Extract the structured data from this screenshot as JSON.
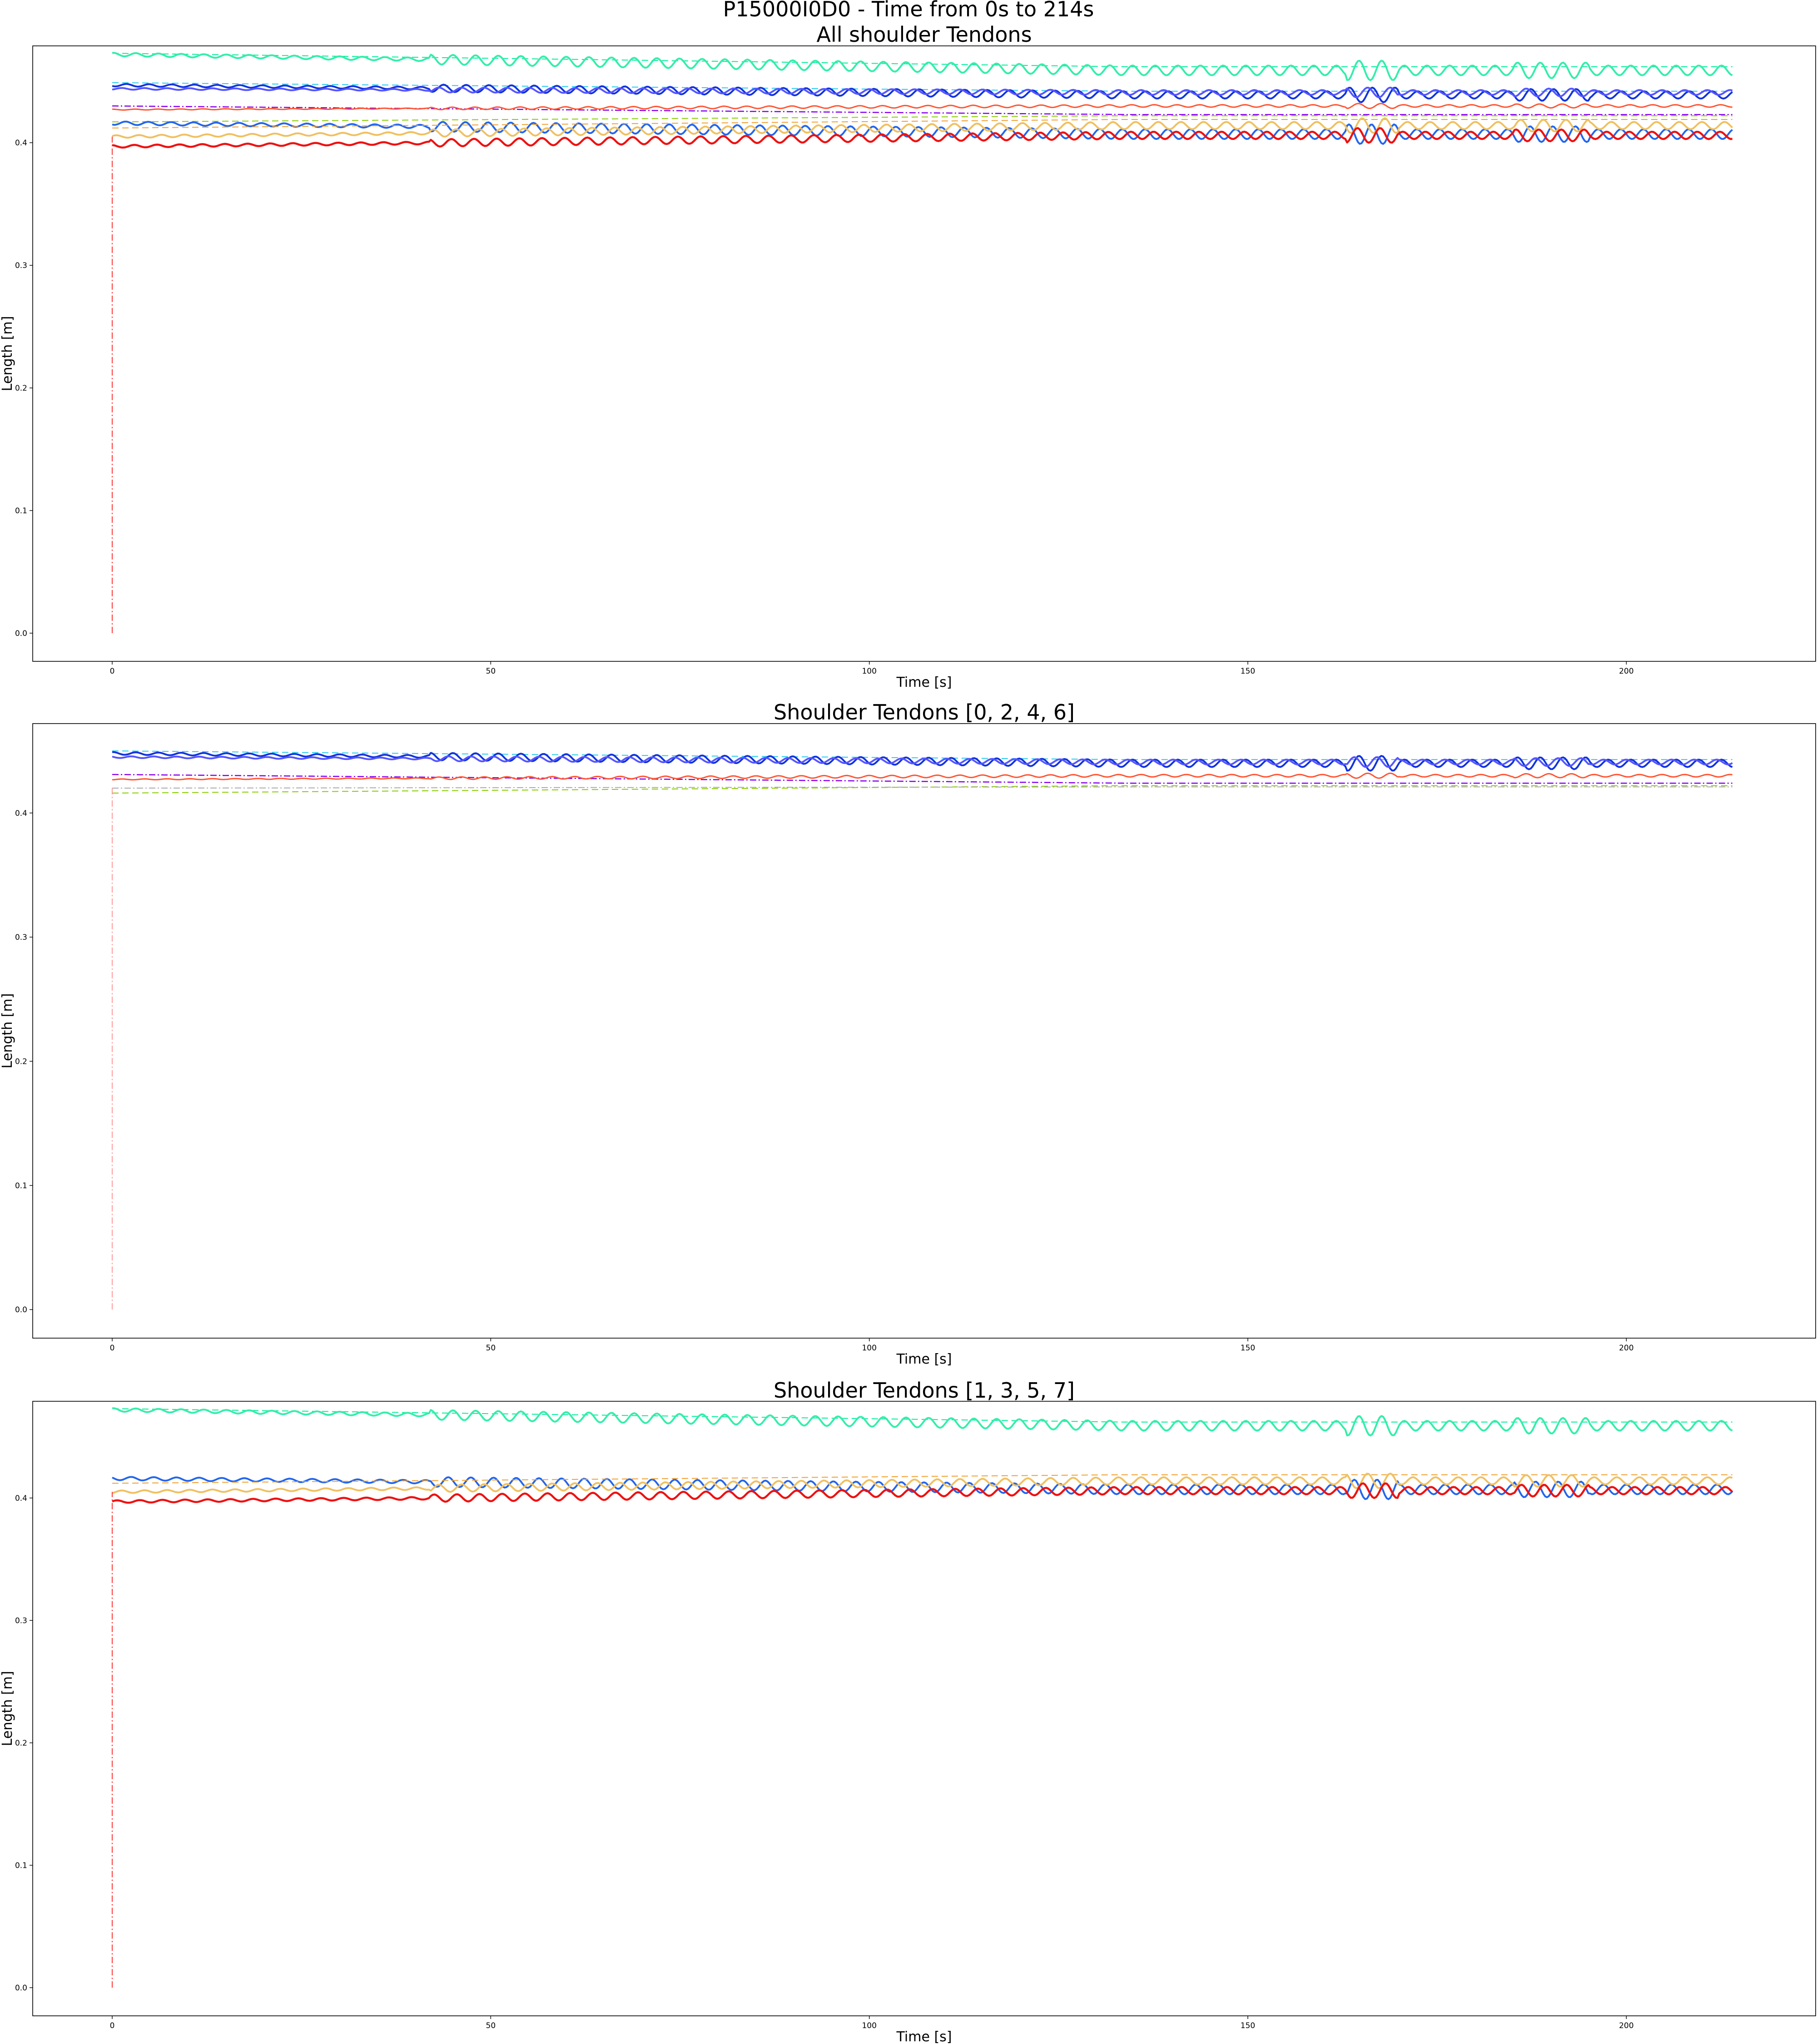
{
  "figure": {
    "suptitle": "P15000I0D0 - Time from 0s to 214s"
  },
  "chart_data": [
    {
      "type": "line",
      "title": "All shoulder Tendons",
      "xlabel": "Time [s]",
      "ylabel": "Length [m]",
      "xlim": [
        -10.5,
        225
      ],
      "ylim": [
        -0.023,
        0.479
      ],
      "xticks": [
        0,
        50,
        100,
        150,
        200
      ],
      "yticks": [
        0.0,
        0.1,
        0.2,
        0.3,
        0.4
      ],
      "xtick_labels": [
        "0",
        "50",
        "100",
        "150",
        "200"
      ],
      "ytick_labels": [
        "0.0",
        "0.1",
        "0.2",
        "0.3",
        "0.4"
      ],
      "grid": false,
      "legend": "none",
      "x_start": 0,
      "x_end": 214,
      "series": [
        {
          "color": "#00ee99",
          "style": "dashed",
          "width": 2,
          "start": 0.473,
          "end": 0.462,
          "osc": 0.0
        },
        {
          "color": "#33eeaa",
          "style": "solid",
          "width": 4,
          "start": 0.472,
          "end": 0.459,
          "osc": 0.004
        },
        {
          "color": "#22ccee",
          "style": "dashed",
          "width": 2,
          "start": 0.449,
          "end": 0.442,
          "osc": 0.0
        },
        {
          "color": "#1133dd",
          "style": "solid",
          "width": 4,
          "start": 0.447,
          "end": 0.439,
          "osc": 0.003
        },
        {
          "color": "#5555ff",
          "style": "solid",
          "width": 4,
          "start": 0.444,
          "end": 0.441,
          "osc": 0.002
        },
        {
          "color": "#8800ee",
          "style": "dashdot",
          "width": 2.5,
          "start": 0.43,
          "end": 0.423,
          "osc": 0.0
        },
        {
          "color": "#ff5533",
          "style": "solid",
          "width": 3,
          "start": 0.427,
          "end": 0.43,
          "osc": 0.001
        },
        {
          "color": "#88cc00",
          "style": "dashed",
          "width": 2,
          "start": 0.417,
          "end": 0.422,
          "osc": 0.0
        },
        {
          "color": "#2266ee",
          "style": "solid",
          "width": 4,
          "start": 0.416,
          "end": 0.407,
          "osc": 0.004
        },
        {
          "color": "#f0a030",
          "style": "dashed",
          "width": 2,
          "start": 0.412,
          "end": 0.419,
          "osc": 0.0
        },
        {
          "color": "#f0c060",
          "style": "solid",
          "width": 4,
          "start": 0.405,
          "end": 0.414,
          "osc": 0.003
        },
        {
          "color": "#ee1111",
          "style": "solid",
          "width": 4.5,
          "start": 0.397,
          "end": 0.406,
          "osc": 0.003
        },
        {
          "color": "#ff3333",
          "style": "dashdot",
          "width": 2,
          "start": 0.0,
          "end": 0.405,
          "osc": 0.0,
          "spike": true
        }
      ]
    },
    {
      "type": "line",
      "title": "Shoulder Tendons [0, 2, 4, 6]",
      "xlabel": "Time [s]",
      "ylabel": "Length [m]",
      "xlim": [
        -10.5,
        225
      ],
      "ylim": [
        -0.023,
        0.472
      ],
      "xticks": [
        0,
        50,
        100,
        150,
        200
      ],
      "yticks": [
        0.0,
        0.1,
        0.2,
        0.3,
        0.4
      ],
      "xtick_labels": [
        "0",
        "50",
        "100",
        "150",
        "200"
      ],
      "ytick_labels": [
        "0.0",
        "0.1",
        "0.2",
        "0.3",
        "0.4"
      ],
      "grid": false,
      "legend": "none",
      "x_start": 0,
      "x_end": 214,
      "series": [
        {
          "color": "#22ccee",
          "style": "dashed",
          "width": 2,
          "start": 0.45,
          "end": 0.443,
          "osc": 0.0
        },
        {
          "color": "#1133dd",
          "style": "solid",
          "width": 4,
          "start": 0.448,
          "end": 0.44,
          "osc": 0.003
        },
        {
          "color": "#5555ff",
          "style": "solid",
          "width": 4,
          "start": 0.445,
          "end": 0.441,
          "osc": 0.002
        },
        {
          "color": "#8800ee",
          "style": "dashdot",
          "width": 2.5,
          "start": 0.431,
          "end": 0.424,
          "osc": 0.0
        },
        {
          "color": "#ff5533",
          "style": "solid",
          "width": 3,
          "start": 0.427,
          "end": 0.43,
          "osc": 0.001
        },
        {
          "color": "#88cc00",
          "style": "dashed",
          "width": 2,
          "start": 0.416,
          "end": 0.422,
          "osc": 0.0
        },
        {
          "color": "#aaaaaa",
          "style": "dashdot",
          "width": 2,
          "start": 0.42,
          "end": 0.421,
          "osc": 0.0
        },
        {
          "color": "#ff9999",
          "style": "dashdot",
          "width": 2,
          "start": 0.0,
          "end": 0.42,
          "osc": 0.0,
          "spike": true
        }
      ]
    },
    {
      "type": "line",
      "title": "Shoulder Tendons  [1, 3, 5, 7]",
      "xlabel": "Time [s]",
      "ylabel": "Length [m]",
      "xlim": [
        -10.5,
        225
      ],
      "ylim": [
        -0.023,
        0.479
      ],
      "xticks": [
        0,
        50,
        100,
        150,
        200
      ],
      "yticks": [
        0.0,
        0.1,
        0.2,
        0.3,
        0.4
      ],
      "xtick_labels": [
        "0",
        "50",
        "100",
        "150",
        "200"
      ],
      "ytick_labels": [
        "0.0",
        "0.1",
        "0.2",
        "0.3",
        "0.4"
      ],
      "grid": false,
      "legend": "none",
      "x_start": 0,
      "x_end": 214,
      "series": [
        {
          "color": "#00ee99",
          "style": "dashed",
          "width": 2,
          "start": 0.473,
          "end": 0.462,
          "osc": 0.0
        },
        {
          "color": "#33eeaa",
          "style": "solid",
          "width": 4,
          "start": 0.472,
          "end": 0.459,
          "osc": 0.004
        },
        {
          "color": "#2266ee",
          "style": "solid",
          "width": 4,
          "start": 0.416,
          "end": 0.407,
          "osc": 0.004
        },
        {
          "color": "#f0a030",
          "style": "dashed",
          "width": 2,
          "start": 0.412,
          "end": 0.419,
          "osc": 0.0
        },
        {
          "color": "#f0c060",
          "style": "solid",
          "width": 4,
          "start": 0.405,
          "end": 0.414,
          "osc": 0.003
        },
        {
          "color": "#ee1111",
          "style": "solid",
          "width": 4.5,
          "start": 0.397,
          "end": 0.406,
          "osc": 0.003
        },
        {
          "color": "#ff3333",
          "style": "dashdot",
          "width": 2,
          "start": 0.0,
          "end": 0.405,
          "osc": 0.0,
          "spike": true
        }
      ]
    }
  ]
}
